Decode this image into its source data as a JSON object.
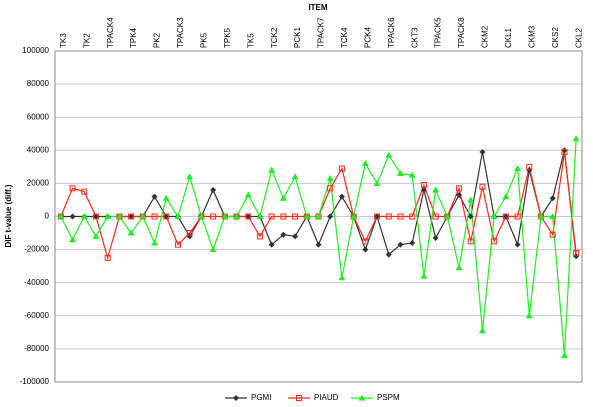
{
  "chart_data": {
    "type": "line",
    "title": "ITEM",
    "y_label": "DIF t-value (diff.)",
    "categories": [
      "TK3",
      null,
      "TK2",
      null,
      "TPACK4",
      null,
      "TPK4",
      null,
      "PK2",
      null,
      "TPACK3",
      null,
      "PK5",
      null,
      "TPK5",
      null,
      "TK5",
      null,
      "TCK2",
      null,
      "PCK1",
      null,
      "TPACK7",
      null,
      "TCK4",
      null,
      "PCK4",
      null,
      "TPACK6",
      null,
      "CKT3",
      null,
      "TPACK5",
      null,
      "TPACK8",
      null,
      "CKM2",
      null,
      "CKL1",
      null,
      "CKM3",
      null,
      "CKS2",
      null,
      "CKL2"
    ],
    "series": [
      {
        "name": "PGMI",
        "color": "#333333",
        "marker": "diamond",
        "values": [
          0,
          0,
          0,
          0,
          0,
          0,
          0,
          0,
          12000,
          0,
          0,
          -12000,
          0,
          16000,
          0,
          0,
          0,
          0,
          -17000,
          -11000,
          -12000,
          0,
          -17000,
          0,
          12000,
          0,
          -20000,
          0,
          -23000,
          -17000,
          -16000,
          16000,
          -13000,
          0,
          13000,
          0,
          39000,
          0,
          0,
          -17000,
          28000,
          0,
          11000,
          40000,
          -24000
        ]
      },
      {
        "name": "PIAUD",
        "color": "#ff2a1a",
        "marker": "square",
        "values": [
          0,
          17000,
          15000,
          0,
          -25000,
          0,
          0,
          0,
          0,
          0,
          -17000,
          -10000,
          0,
          0,
          0,
          0,
          0,
          -12000,
          0,
          0,
          0,
          0,
          0,
          17000,
          29000,
          0,
          -15000,
          0,
          0,
          0,
          0,
          19000,
          0,
          0,
          17000,
          -15000,
          18000,
          -15000,
          0,
          0,
          30000,
          0,
          -11000,
          39000,
          -22000
        ]
      },
      {
        "name": "PSPM",
        "color": "#22ee22",
        "marker": "triangle",
        "values": [
          0,
          -14000,
          0,
          -12000,
          0,
          0,
          -10000,
          0,
          -16000,
          11000,
          0,
          24000,
          0,
          -20000,
          0,
          0,
          13000,
          0,
          28000,
          11000,
          24000,
          0,
          0,
          23000,
          -37000,
          0,
          32000,
          20000,
          37000,
          26000,
          25000,
          -36000,
          16000,
          0,
          -31000,
          10000,
          -69000,
          0,
          12000,
          29000,
          -60000,
          0,
          0,
          -84000,
          47000
        ]
      }
    ],
    "ylim": [
      -100000,
      100000
    ],
    "yticks": [
      -100000,
      -80000,
      -60000,
      -40000,
      -20000,
      0,
      20000,
      40000,
      60000,
      80000,
      100000
    ],
    "grid": true,
    "legend": "bottom"
  }
}
